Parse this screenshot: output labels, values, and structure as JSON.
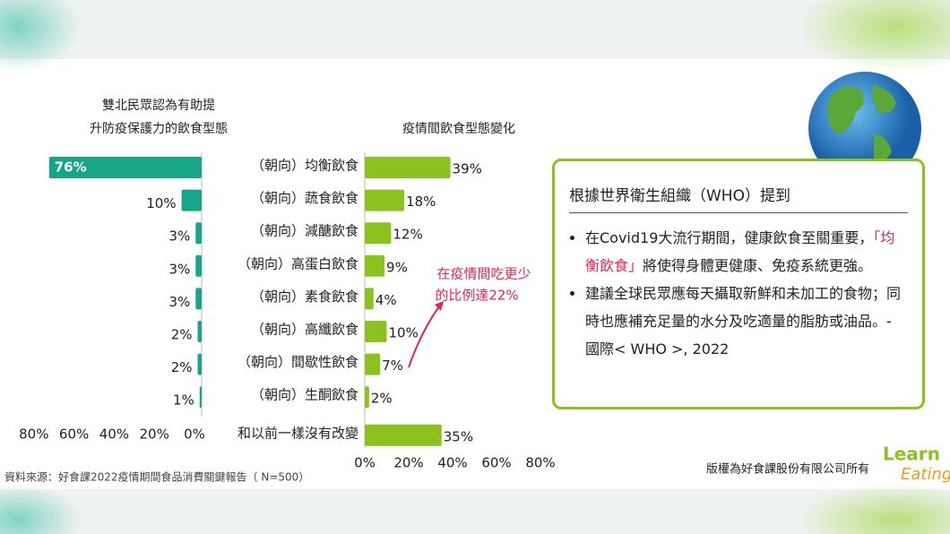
{
  "chart_data": [
    {
      "type": "hbar-reversed",
      "title": [
        "雙北民眾認為有助提",
        "升防疫保護力的飲食型態"
      ],
      "color": "#17a589",
      "values": [
        76,
        10,
        3,
        3,
        3,
        2,
        2,
        1
      ],
      "value_labels": [
        "76%",
        "10%",
        "3%",
        "3%",
        "3%",
        "2%",
        "2%",
        "1%"
      ],
      "xlim": [
        0,
        80
      ],
      "xticks": [
        {
          "value": 80,
          "label": "80%"
        },
        {
          "value": 60,
          "label": "60%"
        },
        {
          "value": 40,
          "label": "40%"
        },
        {
          "value": 20,
          "label": "20%"
        },
        {
          "value": 0,
          "label": "0%"
        }
      ]
    },
    {
      "type": "hbar",
      "title": "疫情間飲食型態變化",
      "color": "#8cc21f",
      "categories": [
        "（朝向）均衡飲食",
        "（朝向）蔬食飲食",
        "（朝向）減醣飲食",
        "（朝向）高蛋白飲食",
        "（朝向）素食飲食",
        "（朝向）高纖飲食",
        "（朝向）間歇性飲食",
        "（朝向）生酮飲食",
        "和以前一樣沒有改變"
      ],
      "values": [
        39,
        18,
        12,
        9,
        4,
        10,
        7,
        2,
        35
      ],
      "value_labels": [
        "39%",
        "18%",
        "12%",
        "9%",
        "4%",
        "10%",
        "7%",
        "2%",
        "35%"
      ],
      "xlim": [
        0,
        80
      ],
      "xticks": [
        {
          "value": 0,
          "label": "0%"
        },
        {
          "value": 20,
          "label": "20%"
        },
        {
          "value": 40,
          "label": "40%"
        },
        {
          "value": 60,
          "label": "60%"
        },
        {
          "value": 80,
          "label": "80%"
        }
      ],
      "annotation": [
        "在疫情間吃更少",
        "的比例達22%"
      ]
    }
  ],
  "panel": {
    "heading": "根據世界衛生組織（WHO）提到",
    "bullets": [
      [
        "在Covid19大流行期間，健康飲食至關重要，",
        "「均衡飲食」",
        "將使得身體更健康、免疫系統更強。"
      ],
      [
        "建議全球民眾應每天攝取新鮮和未加工的食物；同時也應補充足量的水分及吃適量的脂肪或油品。- 國際< WHO >, 2022"
      ]
    ]
  },
  "source": "資料來源：好食課2022疫情期間食品消費關鍵報告（ N=500）",
  "copyright": "版權為好食課股份有限公司所有",
  "logo": [
    "Learn",
    "Eating"
  ]
}
